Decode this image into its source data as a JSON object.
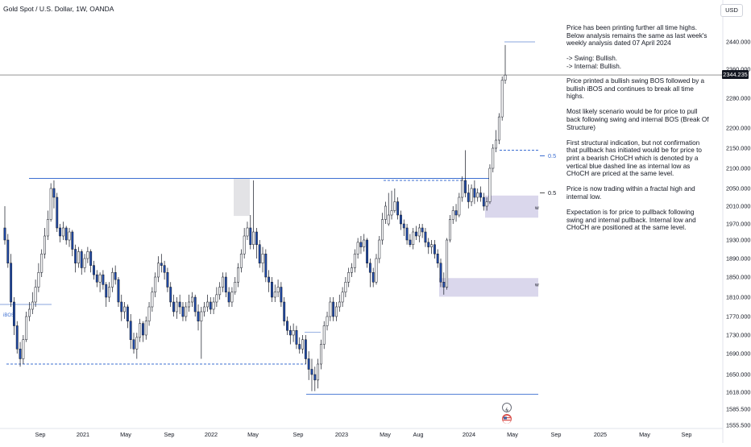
{
  "header": {
    "title": "Gold Spot / U.S. Dollar, 1W, OANDA",
    "currency_button": "USD"
  },
  "annotations": {
    "notes": [
      "Price has been printing further all time highs.\nBelow analysis remains the same as last week's weekly analysis dated 07 April 2024\n\n-> Swing: Bullish.\n-> Internal: Bullish.",
      "Price  printed a bullish swing BOS followed by a bullish iBOS and continues to break all time highs.\n\nMost likely scenario would be for price to pull back following swing and internal BOS (Break Of Structure)\n\nFirst structural indication, but not confirmation that pullback has initiated would be for price to print a bearish CHoCH which is denoted by a vertical blue dashed line as internal low as CHoCH are priced at the same level.\n\nPrice is now trading within a fractal high and internal low.\n\nExpectation is for price to pullback following swing and internal pullback.  Internal low and CHoCH are positioned at the same level."
    ],
    "ibos_label": "iBOS",
    "fib_labels": [
      "0.5",
      "0.5"
    ],
    "zone_labels": [
      "w",
      "w"
    ]
  },
  "chart_data": {
    "type": "candlestick",
    "symbol": "Gold Spot / U.S. Dollar",
    "timeframe": "1W",
    "last_price": "2344.235",
    "y_axis_ticks": [
      "2440.000",
      "2360.000",
      "2280.000",
      "2200.000",
      "2150.000",
      "2100.000",
      "2050.000",
      "2010.000",
      "1970.000",
      "1930.000",
      "1890.000",
      "1850.000",
      "1810.000",
      "1770.000",
      "1730.000",
      "1690.000",
      "1650.000",
      "1618.000",
      "1585.500",
      "1555.500"
    ],
    "x_axis_ticks": [
      "Sep",
      "2021",
      "May",
      "Sep",
      "2022",
      "May",
      "Sep",
      "2023",
      "May",
      "Aug",
      "2024",
      "May",
      "Sep",
      "2025",
      "May",
      "Sep"
    ],
    "candles": [
      [
        1960,
        1930,
        2010,
        1920
      ],
      [
        1930,
        1880,
        1945,
        1870
      ],
      [
        1880,
        1800,
        1900,
        1790
      ],
      [
        1800,
        1750,
        1810,
        1730
      ],
      [
        1750,
        1700,
        1760,
        1690
      ],
      [
        1700,
        1680,
        1715,
        1665
      ],
      [
        1680,
        1720,
        1730,
        1670
      ],
      [
        1720,
        1770,
        1780,
        1715
      ],
      [
        1770,
        1785,
        1800,
        1760
      ],
      [
        1785,
        1800,
        1820,
        1775
      ],
      [
        1800,
        1830,
        1845,
        1790
      ],
      [
        1830,
        1860,
        1880,
        1820
      ],
      [
        1860,
        1900,
        1910,
        1850
      ],
      [
        1900,
        1940,
        1960,
        1890
      ],
      [
        1940,
        1980,
        2000,
        1930
      ],
      [
        1980,
        2050,
        2063,
        1975
      ],
      [
        2050,
        2030,
        2070,
        2005
      ],
      [
        2030,
        1960,
        2040,
        1950
      ],
      [
        1960,
        1940,
        1970,
        1925
      ],
      [
        1940,
        1960,
        1975,
        1930
      ],
      [
        1960,
        1930,
        1965,
        1920
      ],
      [
        1930,
        1950,
        1960,
        1915
      ],
      [
        1950,
        1910,
        1955,
        1895
      ],
      [
        1910,
        1880,
        1920,
        1860
      ],
      [
        1880,
        1905,
        1915,
        1870
      ],
      [
        1905,
        1870,
        1910,
        1855
      ],
      [
        1870,
        1890,
        1900,
        1860
      ],
      [
        1890,
        1905,
        1915,
        1880
      ],
      [
        1905,
        1875,
        1910,
        1860
      ],
      [
        1875,
        1855,
        1885,
        1845
      ],
      [
        1855,
        1840,
        1865,
        1830
      ],
      [
        1840,
        1855,
        1860,
        1820
      ],
      [
        1855,
        1835,
        1865,
        1825
      ],
      [
        1835,
        1810,
        1840,
        1790
      ],
      [
        1810,
        1830,
        1840,
        1800
      ],
      [
        1830,
        1860,
        1870,
        1820
      ],
      [
        1860,
        1845,
        1875,
        1835
      ],
      [
        1845,
        1800,
        1850,
        1790
      ],
      [
        1800,
        1780,
        1815,
        1760
      ],
      [
        1780,
        1790,
        1800,
        1765
      ],
      [
        1790,
        1760,
        1795,
        1745
      ],
      [
        1760,
        1720,
        1775,
        1700
      ],
      [
        1720,
        1700,
        1735,
        1690
      ],
      [
        1700,
        1725,
        1735,
        1680
      ],
      [
        1725,
        1755,
        1765,
        1715
      ],
      [
        1755,
        1730,
        1760,
        1715
      ],
      [
        1730,
        1760,
        1770,
        1720
      ],
      [
        1760,
        1790,
        1800,
        1750
      ],
      [
        1790,
        1820,
        1830,
        1780
      ],
      [
        1820,
        1850,
        1860,
        1810
      ],
      [
        1850,
        1880,
        1895,
        1840
      ],
      [
        1880,
        1875,
        1900,
        1860
      ],
      [
        1875,
        1860,
        1885,
        1845
      ],
      [
        1860,
        1830,
        1870,
        1820
      ],
      [
        1830,
        1800,
        1840,
        1790
      ],
      [
        1800,
        1780,
        1815,
        1770
      ],
      [
        1780,
        1800,
        1810,
        1765
      ],
      [
        1800,
        1790,
        1815,
        1775
      ],
      [
        1790,
        1770,
        1800,
        1760
      ],
      [
        1770,
        1790,
        1800,
        1760
      ],
      [
        1790,
        1800,
        1815,
        1780
      ],
      [
        1800,
        1810,
        1820,
        1790
      ],
      [
        1810,
        1780,
        1815,
        1770
      ],
      [
        1780,
        1760,
        1795,
        1740
      ],
      [
        1760,
        1780,
        1790,
        1680
      ],
      [
        1780,
        1790,
        1800,
        1770
      ],
      [
        1790,
        1800,
        1815,
        1780
      ],
      [
        1800,
        1785,
        1810,
        1775
      ],
      [
        1785,
        1800,
        1810,
        1775
      ],
      [
        1800,
        1815,
        1830,
        1790
      ],
      [
        1815,
        1830,
        1840,
        1805
      ],
      [
        1830,
        1850,
        1860,
        1820
      ],
      [
        1850,
        1820,
        1860,
        1810
      ],
      [
        1820,
        1800,
        1830,
        1790
      ],
      [
        1800,
        1820,
        1830,
        1790
      ],
      [
        1820,
        1840,
        1850,
        1815
      ],
      [
        1840,
        1870,
        1880,
        1830
      ],
      [
        1870,
        1900,
        1910,
        1860
      ],
      [
        1900,
        1940,
        1960,
        1890
      ],
      [
        1940,
        1960,
        1975,
        1930
      ],
      [
        1960,
        1920,
        1990,
        1910
      ],
      [
        1920,
        1950,
        2070,
        1910
      ],
      [
        1950,
        1920,
        1960,
        1890
      ],
      [
        1920,
        1880,
        1930,
        1870
      ],
      [
        1880,
        1900,
        1915,
        1860
      ],
      [
        1900,
        1850,
        1910,
        1840
      ],
      [
        1850,
        1840,
        1865,
        1820
      ],
      [
        1840,
        1810,
        1850,
        1800
      ],
      [
        1810,
        1820,
        1835,
        1800
      ],
      [
        1820,
        1830,
        1845,
        1810
      ],
      [
        1830,
        1800,
        1840,
        1790
      ],
      [
        1800,
        1760,
        1810,
        1750
      ],
      [
        1760,
        1740,
        1770,
        1730
      ],
      [
        1740,
        1730,
        1750,
        1710
      ],
      [
        1730,
        1740,
        1755,
        1715
      ],
      [
        1740,
        1710,
        1750,
        1700
      ],
      [
        1710,
        1700,
        1725,
        1690
      ],
      [
        1700,
        1720,
        1730,
        1690
      ],
      [
        1720,
        1680,
        1730,
        1670
      ],
      [
        1680,
        1660,
        1695,
        1640
      ],
      [
        1660,
        1650,
        1680,
        1620
      ],
      [
        1650,
        1640,
        1665,
        1620
      ],
      [
        1640,
        1670,
        1680,
        1625
      ],
      [
        1670,
        1710,
        1720,
        1660
      ],
      [
        1710,
        1750,
        1760,
        1700
      ],
      [
        1750,
        1770,
        1780,
        1740
      ],
      [
        1770,
        1800,
        1810,
        1760
      ],
      [
        1800,
        1770,
        1810,
        1760
      ],
      [
        1770,
        1790,
        1800,
        1760
      ],
      [
        1790,
        1800,
        1815,
        1780
      ],
      [
        1800,
        1820,
        1830,
        1790
      ],
      [
        1820,
        1840,
        1850,
        1810
      ],
      [
        1840,
        1860,
        1870,
        1830
      ],
      [
        1860,
        1870,
        1880,
        1850
      ],
      [
        1870,
        1900,
        1910,
        1860
      ],
      [
        1900,
        1925,
        1935,
        1890
      ],
      [
        1925,
        1915,
        1940,
        1900
      ],
      [
        1915,
        1930,
        1945,
        1905
      ],
      [
        1930,
        1880,
        1935,
        1870
      ],
      [
        1880,
        1860,
        1890,
        1830
      ],
      [
        1860,
        1840,
        1870,
        1830
      ],
      [
        1840,
        1890,
        1900,
        1835
      ],
      [
        1890,
        1930,
        1940,
        1880
      ],
      [
        1930,
        1980,
        1995,
        1920
      ],
      [
        1980,
        2010,
        2020,
        1970
      ],
      [
        1970,
        1990,
        2040,
        1965
      ],
      [
        1990,
        2000,
        2045,
        1980
      ],
      [
        2000,
        2020,
        2050,
        1995
      ],
      [
        2020,
        1990,
        2030,
        1980
      ],
      [
        1990,
        1970,
        2000,
        1955
      ],
      [
        1970,
        1960,
        1980,
        1940
      ],
      [
        1960,
        1930,
        1970,
        1920
      ],
      [
        1930,
        1920,
        1945,
        1915
      ],
      [
        1920,
        1950,
        1960,
        1910
      ],
      [
        1950,
        1940,
        1965,
        1930
      ],
      [
        1940,
        1960,
        1970,
        1925
      ],
      [
        1960,
        1950,
        1970,
        1935
      ],
      [
        1950,
        1925,
        1960,
        1915
      ],
      [
        1925,
        1915,
        1935,
        1900
      ],
      [
        1915,
        1920,
        1930,
        1900
      ],
      [
        1920,
        1900,
        1930,
        1890
      ],
      [
        1900,
        1880,
        1910,
        1870
      ],
      [
        1880,
        1840,
        1890,
        1830
      ],
      [
        1840,
        1830,
        1860,
        1815
      ],
      [
        1830,
        1930,
        1935,
        1825
      ],
      [
        1930,
        1980,
        1990,
        1925
      ],
      [
        1980,
        2000,
        2010,
        1970
      ],
      [
        2000,
        1990,
        2015,
        1975
      ],
      [
        1990,
        2030,
        2040,
        1985
      ],
      [
        2030,
        2070,
        2080,
        2020
      ],
      [
        2070,
        2040,
        2145,
        2030
      ],
      [
        2040,
        2020,
        2060,
        2005
      ],
      [
        2020,
        2050,
        2060,
        2010
      ],
      [
        2050,
        2030,
        2070,
        2015
      ],
      [
        2030,
        2040,
        2050,
        2020
      ],
      [
        2040,
        2030,
        2055,
        2020
      ],
      [
        2030,
        2010,
        2040,
        2000
      ],
      [
        2010,
        2020,
        2030,
        2000
      ],
      [
        2020,
        2100,
        2110,
        2015
      ],
      [
        2100,
        2150,
        2160,
        2090
      ],
      [
        2150,
        2170,
        2195,
        2140
      ],
      [
        2170,
        2230,
        2240,
        2160
      ],
      [
        2230,
        2330,
        2340,
        2220
      ],
      [
        2330,
        2344,
        2431,
        2320
      ]
    ]
  }
}
